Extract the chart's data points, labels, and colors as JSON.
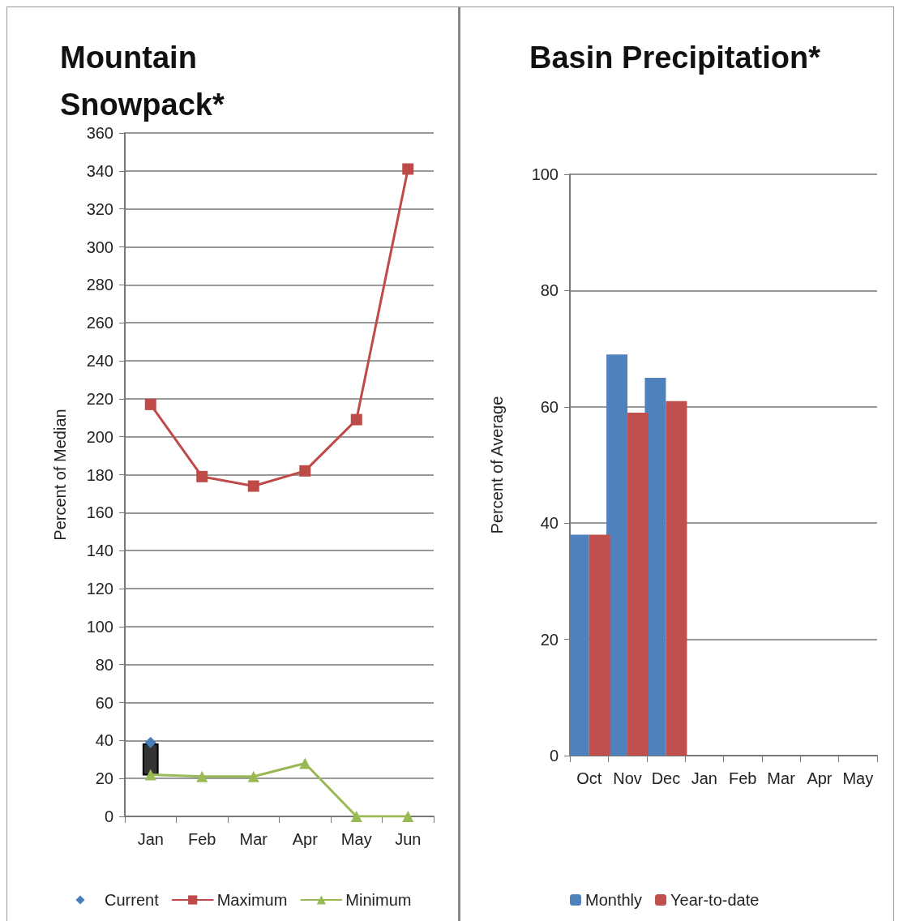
{
  "chart_data": [
    {
      "type": "line",
      "title": "Mountain Snowpack*",
      "ylabel": "Percent of Median",
      "categories": [
        "Jan",
        "Feb",
        "Mar",
        "Apr",
        "May",
        "Jun"
      ],
      "series": [
        {
          "name": "Current",
          "color": "#4a7ebb",
          "marker": "diamond",
          "line_style": "none",
          "values": [
            39,
            null,
            null,
            null,
            null,
            null
          ]
        },
        {
          "name": "Maximum",
          "color": "#be4b48",
          "marker": "square",
          "values": [
            217,
            179,
            174,
            182,
            209,
            341
          ]
        },
        {
          "name": "Minimum",
          "color": "#98b954",
          "marker": "triangle",
          "values": [
            22,
            21,
            21,
            28,
            0,
            0
          ]
        },
        {
          "type": "bar",
          "color": "#333333",
          "base": [
            22,
            null,
            null,
            null,
            null,
            null
          ],
          "values": [
            16,
            null,
            null,
            null,
            null,
            null
          ]
        }
      ],
      "ylim": [
        0,
        360
      ],
      "yticks": [
        0,
        20,
        40,
        60,
        80,
        100,
        120,
        140,
        160,
        180,
        200,
        220,
        240,
        260,
        280,
        300,
        320,
        340,
        360
      ],
      "grid": "y",
      "legend": "bottom"
    },
    {
      "type": "bar",
      "title": "Basin Precipitation*",
      "ylabel": "Percent of Average",
      "categories": [
        "Oct",
        "Nov",
        "Dec",
        "Jan",
        "Feb",
        "Mar",
        "Apr",
        "May"
      ],
      "series": [
        {
          "name": "Monthly",
          "color": "#4f81bd",
          "values": [
            38,
            69,
            65,
            null,
            null,
            null,
            null,
            null
          ]
        },
        {
          "name": "Year-to-date",
          "color": "#c0504d",
          "values": [
            38,
            59,
            61,
            null,
            null,
            null,
            null,
            null
          ]
        }
      ],
      "ylim": [
        0,
        100
      ],
      "yticks": [
        0,
        20,
        40,
        60,
        80,
        100
      ],
      "grid": "y",
      "legend": "bottom"
    }
  ]
}
